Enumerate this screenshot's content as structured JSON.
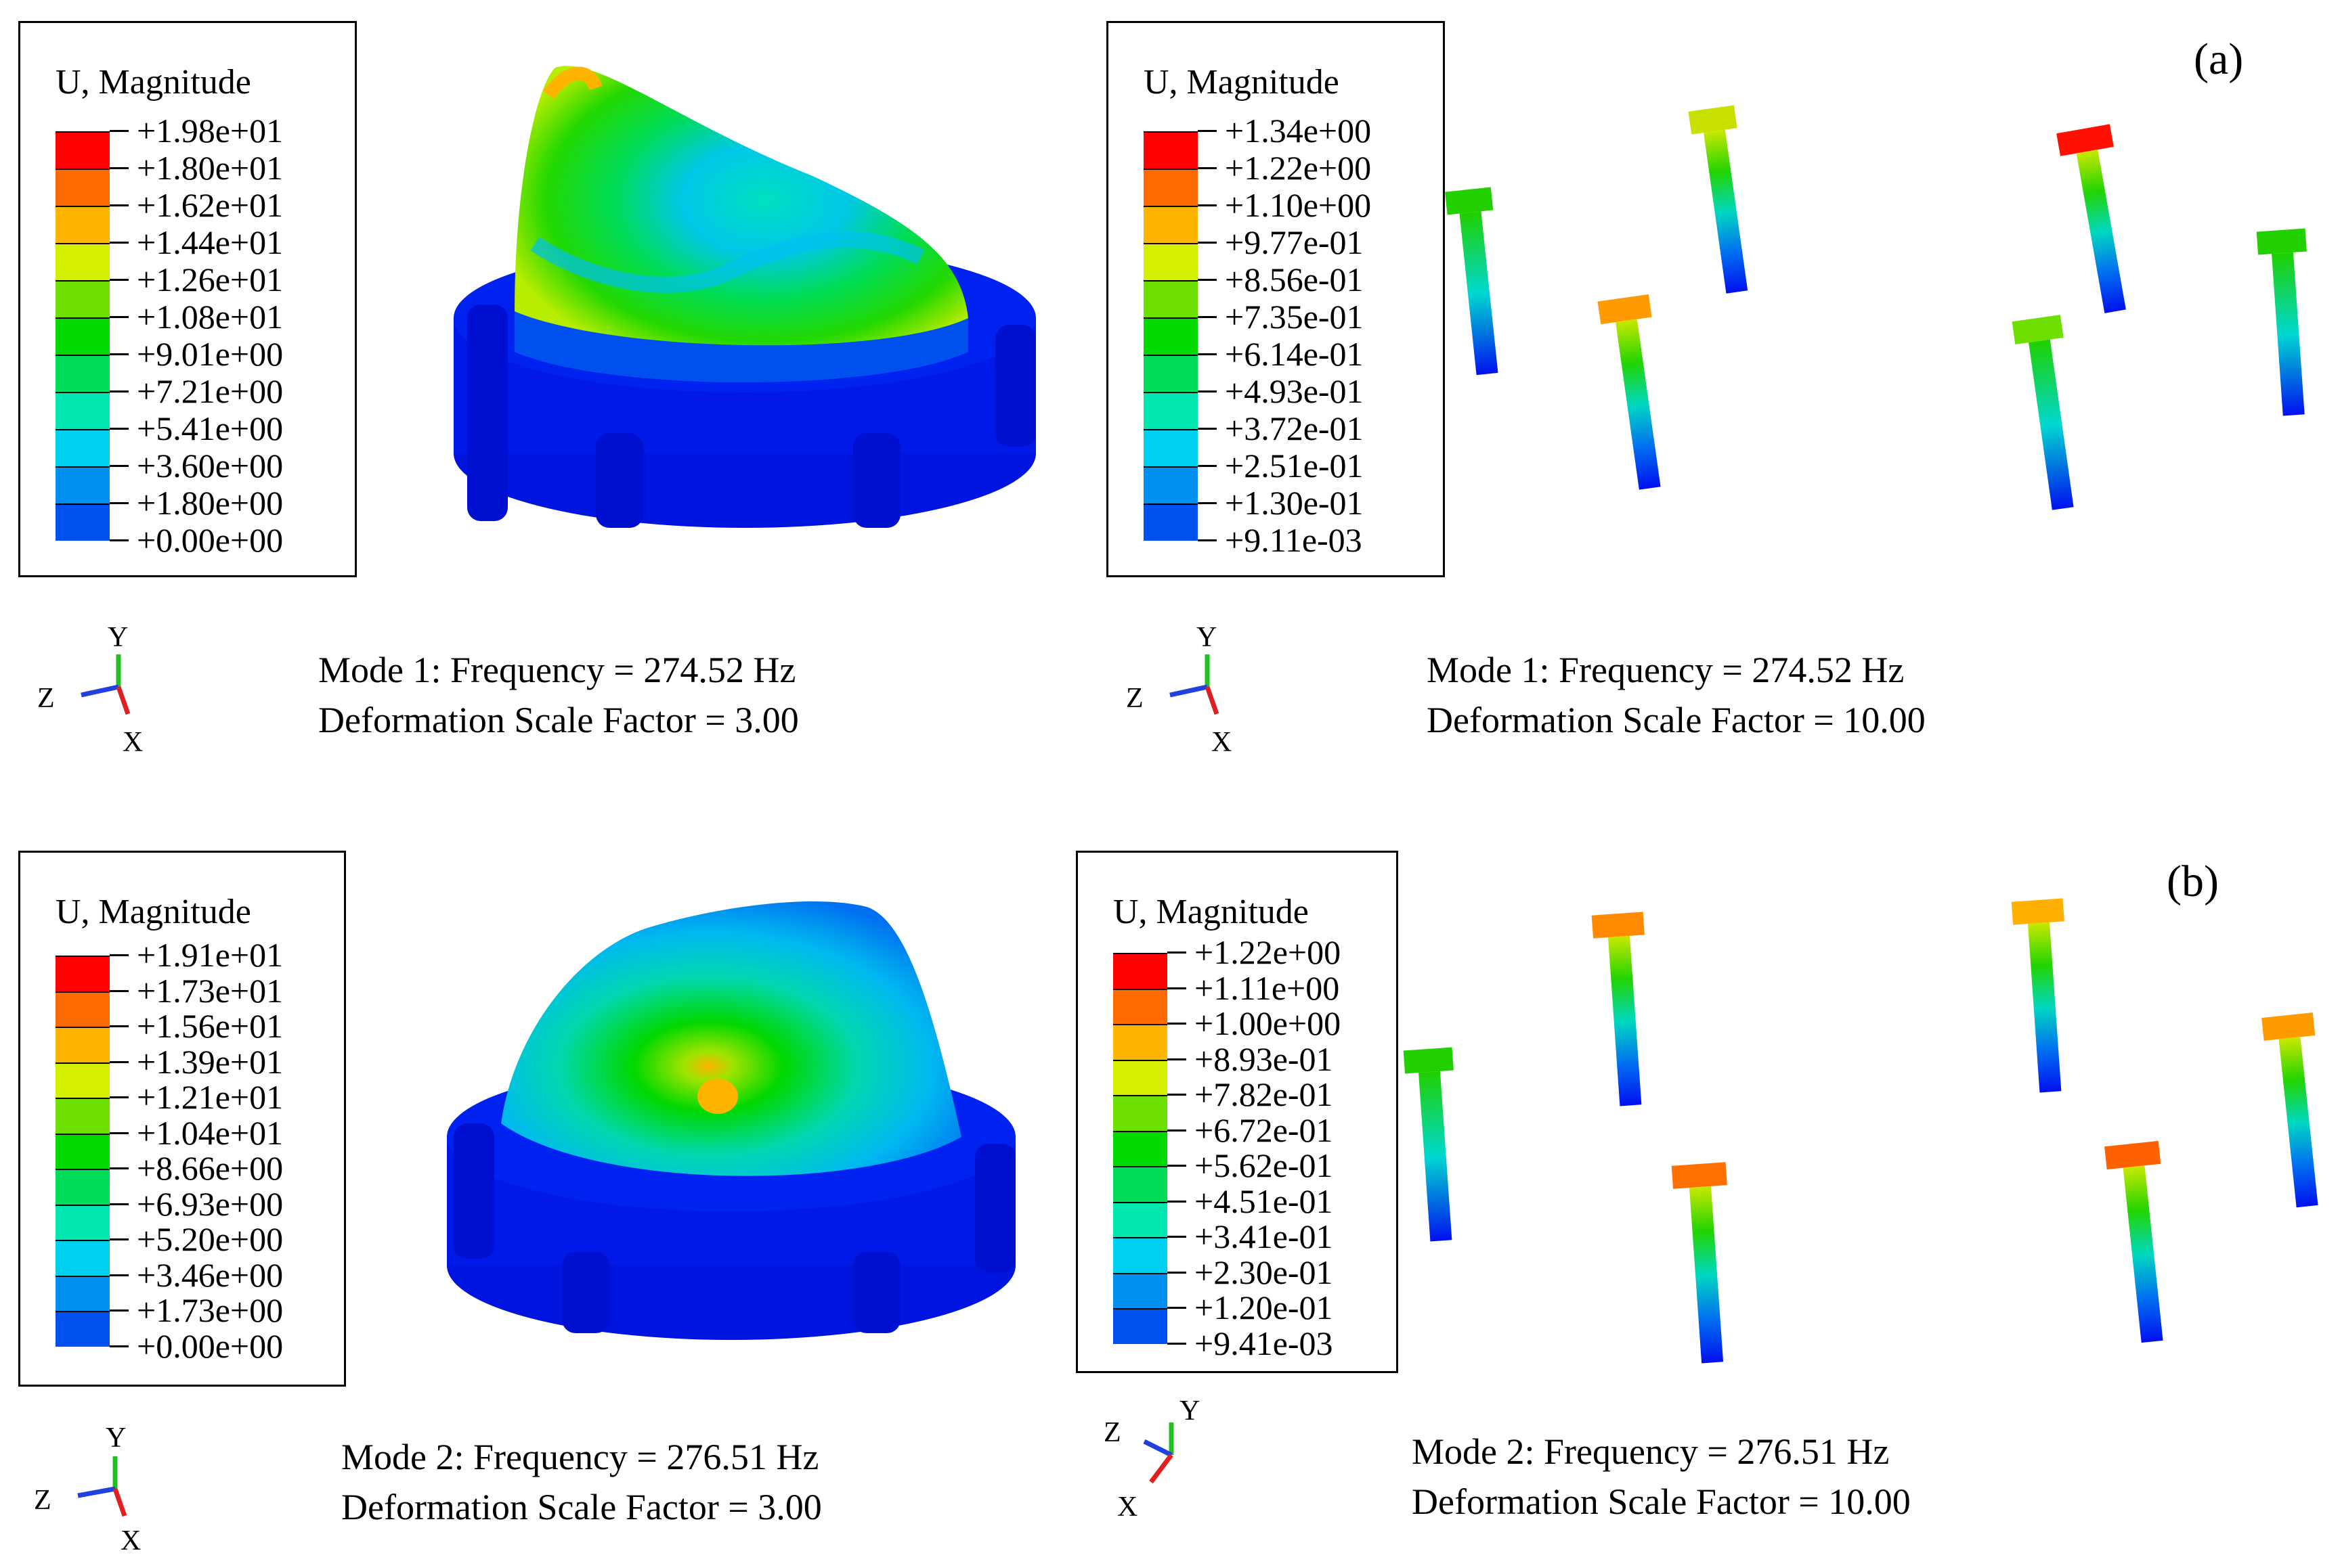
{
  "panels": [
    {
      "label": "(a)",
      "housing": {
        "legend_title": "U, Magnitude",
        "legend_values": [
          "+1.98e+01",
          "+1.80e+01",
          "+1.62e+01",
          "+1.44e+01",
          "+1.26e+01",
          "+1.08e+01",
          "+9.01e+00",
          "+7.21e+00",
          "+5.41e+00",
          "+3.60e+00",
          "+1.80e+00",
          "+0.00e+00"
        ],
        "mode_line": "Mode 1: Frequency = 274.52 Hz",
        "scale_line": "Deformation Scale Factor = 3.00"
      },
      "bolts": {
        "legend_title": "U, Magnitude",
        "legend_values": [
          "+1.34e+00",
          "+1.22e+00",
          "+1.10e+00",
          "+9.77e-01",
          "+8.56e-01",
          "+7.35e-01",
          "+6.14e-01",
          "+4.93e-01",
          "+3.72e-01",
          "+2.51e-01",
          "+1.30e-01",
          "+9.11e-03"
        ],
        "mode_line": "Mode 1: Frequency = 274.52 Hz",
        "scale_line": "Deformation Scale Factor = 10.00"
      }
    },
    {
      "label": "(b)",
      "housing": {
        "legend_title": "U, Magnitude",
        "legend_values": [
          "+1.91e+01",
          "+1.73e+01",
          "+1.56e+01",
          "+1.39e+01",
          "+1.21e+01",
          "+1.04e+01",
          "+8.66e+00",
          "+6.93e+00",
          "+5.20e+00",
          "+3.46e+00",
          "+1.73e+00",
          "+0.00e+00"
        ],
        "mode_line": "Mode 2: Frequency = 276.51 Hz",
        "scale_line": "Deformation Scale Factor = 3.00"
      },
      "bolts": {
        "legend_title": "U, Magnitude",
        "legend_values": [
          "+1.22e+00",
          "+1.11e+00",
          "+1.00e+00",
          "+8.93e-01",
          "+7.82e-01",
          "+6.72e-01",
          "+5.62e-01",
          "+4.51e-01",
          "+3.41e-01",
          "+2.30e-01",
          "+1.20e-01",
          "+9.41e-03"
        ],
        "mode_line": "Mode 2: Frequency = 276.51 Hz",
        "scale_line": "Deformation Scale Factor = 10.00"
      }
    }
  ],
  "axes": {
    "y": "Y",
    "z": "Z",
    "x": "X"
  },
  "colormap": [
    "#ff0000",
    "#ff6a00",
    "#ffb400",
    "#d4f000",
    "#6ee000",
    "#00d800",
    "#00dc58",
    "#00e8b0",
    "#00d0f0",
    "#0090f0",
    "#0050f0",
    "#0010f0"
  ]
}
